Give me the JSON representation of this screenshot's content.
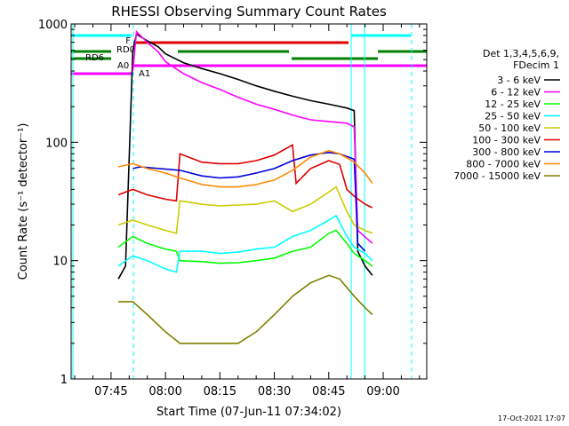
{
  "chart_data": {
    "type": "line",
    "title": "RHESSI Observing Summary Count Rates",
    "xlabel": "Start Time (07-Jun-11 07:34:02)",
    "ylabel": "Count Rate (s⁻¹ detector⁻¹)",
    "yscale": "log",
    "ylim": [
      1,
      1000
    ],
    "y_tick_labels": [
      "1",
      "10",
      "100",
      "1000"
    ],
    "xlim_minutes": [
      "07:34",
      "09:12"
    ],
    "x_tick_labels": [
      "07:45",
      "08:00",
      "08:15",
      "08:30",
      "08:45",
      "09:00"
    ],
    "legend_header": [
      "Det 1,3,4,5,6,9,",
      "FDecim 1"
    ],
    "legend_placement": "right",
    "timestamp": "17-Oct-2021 17:07",
    "state_labels": [
      "F",
      "RD0",
      "RD6",
      "A0",
      "A1"
    ],
    "series": [
      {
        "name": "3 - 6 keV",
        "color": "#000000",
        "points": [
          [
            "07:47",
            7
          ],
          [
            "07:49",
            9
          ],
          [
            "07:51",
            600
          ],
          [
            "07:52",
            820
          ],
          [
            "07:55",
            720
          ],
          [
            "07:58",
            640
          ],
          [
            "08:00",
            560
          ],
          [
            "08:05",
            470
          ],
          [
            "08:10",
            420
          ],
          [
            "08:15",
            380
          ],
          [
            "08:20",
            340
          ],
          [
            "08:25",
            300
          ],
          [
            "08:30",
            270
          ],
          [
            "08:35",
            245
          ],
          [
            "08:40",
            225
          ],
          [
            "08:45",
            210
          ],
          [
            "08:50",
            195
          ],
          [
            "08:52",
            185
          ],
          [
            "08:53",
            12
          ],
          [
            "08:55",
            9
          ],
          [
            "08:57",
            7.5
          ]
        ]
      },
      {
        "name": "6 - 12 keV",
        "color": "#ff00ff",
        "points": [
          [
            "07:51",
            400
          ],
          [
            "07:52",
            860
          ],
          [
            "07:55",
            700
          ],
          [
            "07:58",
            580
          ],
          [
            "08:00",
            480
          ],
          [
            "08:05",
            380
          ],
          [
            "08:10",
            320
          ],
          [
            "08:15",
            280
          ],
          [
            "08:20",
            240
          ],
          [
            "08:25",
            210
          ],
          [
            "08:30",
            190
          ],
          [
            "08:35",
            170
          ],
          [
            "08:40",
            155
          ],
          [
            "08:45",
            150
          ],
          [
            "08:50",
            145
          ],
          [
            "08:52",
            135
          ],
          [
            "08:53",
            18
          ],
          [
            "08:57",
            14
          ]
        ]
      },
      {
        "name": "12 - 25 keV",
        "color": "#00ff00",
        "points": [
          [
            "07:47",
            13
          ],
          [
            "07:51",
            16
          ],
          [
            "07:55",
            14
          ],
          [
            "08:00",
            12.5
          ],
          [
            "08:03",
            12
          ],
          [
            "08:04",
            10
          ],
          [
            "08:10",
            9.8
          ],
          [
            "08:15",
            9.5
          ],
          [
            "08:20",
            9.6
          ],
          [
            "08:25",
            10
          ],
          [
            "08:30",
            10.5
          ],
          [
            "08:35",
            12
          ],
          [
            "08:40",
            13
          ],
          [
            "08:45",
            17
          ],
          [
            "08:47",
            18
          ],
          [
            "08:50",
            14
          ],
          [
            "08:52",
            11.5
          ],
          [
            "08:55",
            10
          ],
          [
            "08:57",
            9
          ]
        ]
      },
      {
        "name": "25 - 50 keV",
        "color": "#00ffff",
        "points": [
          [
            "07:47",
            9
          ],
          [
            "07:51",
            11
          ],
          [
            "07:55",
            10
          ],
          [
            "08:00",
            8.5
          ],
          [
            "08:03",
            8
          ],
          [
            "08:04",
            12
          ],
          [
            "08:10",
            12
          ],
          [
            "08:15",
            11.5
          ],
          [
            "08:20",
            11.8
          ],
          [
            "08:25",
            12.5
          ],
          [
            "08:30",
            13
          ],
          [
            "08:35",
            16
          ],
          [
            "08:40",
            18
          ],
          [
            "08:45",
            22
          ],
          [
            "08:47",
            24
          ],
          [
            "08:50",
            16
          ],
          [
            "08:52",
            13
          ],
          [
            "08:55",
            11.5
          ],
          [
            "08:57",
            10
          ]
        ]
      },
      {
        "name": "50 - 100 keV",
        "color": "#cccc00",
        "points": [
          [
            "07:47",
            20
          ],
          [
            "07:51",
            22
          ],
          [
            "07:55",
            20
          ],
          [
            "08:00",
            18
          ],
          [
            "08:03",
            17
          ],
          [
            "08:04",
            32
          ],
          [
            "08:10",
            30
          ],
          [
            "08:15",
            29
          ],
          [
            "08:20",
            29.5
          ],
          [
            "08:25",
            30
          ],
          [
            "08:30",
            32
          ],
          [
            "08:35",
            26
          ],
          [
            "08:40",
            30
          ],
          [
            "08:45",
            38
          ],
          [
            "08:47",
            42
          ],
          [
            "08:50",
            26
          ],
          [
            "08:52",
            20
          ],
          [
            "08:55",
            18
          ],
          [
            "08:57",
            17
          ]
        ]
      },
      {
        "name": "100 - 300 keV",
        "color": "#dd0000",
        "points": [
          [
            "07:47",
            36
          ],
          [
            "07:51",
            40
          ],
          [
            "07:55",
            36
          ],
          [
            "08:00",
            33
          ],
          [
            "08:03",
            32
          ],
          [
            "08:04",
            80
          ],
          [
            "08:10",
            68
          ],
          [
            "08:15",
            66
          ],
          [
            "08:20",
            66
          ],
          [
            "08:25",
            70
          ],
          [
            "08:30",
            78
          ],
          [
            "08:35",
            95
          ],
          [
            "08:36",
            45
          ],
          [
            "08:40",
            60
          ],
          [
            "08:45",
            70
          ],
          [
            "08:48",
            65
          ],
          [
            "08:50",
            40
          ],
          [
            "08:52",
            35
          ],
          [
            "08:55",
            30
          ],
          [
            "08:57",
            28
          ]
        ]
      },
      {
        "name": "300 - 800 keV",
        "color": "#0000dd",
        "points": [
          [
            "07:51",
            60
          ],
          [
            "07:53",
            62
          ],
          [
            "08:04",
            58
          ],
          [
            "08:10",
            52
          ],
          [
            "08:15",
            50
          ],
          [
            "08:20",
            51
          ],
          [
            "08:25",
            55
          ],
          [
            "08:30",
            60
          ],
          [
            "08:35",
            70
          ],
          [
            "08:40",
            78
          ],
          [
            "08:45",
            82
          ],
          [
            "08:48",
            80
          ],
          [
            "08:52",
            72
          ],
          [
            "08:53",
            14
          ],
          [
            "08:55",
            12
          ]
        ]
      },
      {
        "name": "800 - 7000 keV",
        "color": "#ff8800",
        "points": [
          [
            "07:47",
            62
          ],
          [
            "07:51",
            66
          ],
          [
            "07:55",
            60
          ],
          [
            "08:00",
            55
          ],
          [
            "08:04",
            50
          ],
          [
            "08:10",
            44
          ],
          [
            "08:15",
            42
          ],
          [
            "08:20",
            42
          ],
          [
            "08:25",
            44
          ],
          [
            "08:30",
            48
          ],
          [
            "08:35",
            58
          ],
          [
            "08:40",
            75
          ],
          [
            "08:45",
            85
          ],
          [
            "08:48",
            80
          ],
          [
            "08:52",
            68
          ],
          [
            "08:55",
            55
          ],
          [
            "08:57",
            45
          ]
        ]
      },
      {
        "name": "7000 - 15000 keV",
        "color": "#808000",
        "points": [
          [
            "07:47",
            4.5
          ],
          [
            "07:51",
            4.5
          ],
          [
            "07:55",
            3.5
          ],
          [
            "08:00",
            2.5
          ],
          [
            "08:04",
            2
          ],
          [
            "08:10",
            2
          ],
          [
            "08:15",
            2
          ],
          [
            "08:20",
            2
          ],
          [
            "08:25",
            2.5
          ],
          [
            "08:30",
            3.5
          ],
          [
            "08:35",
            5
          ],
          [
            "08:40",
            6.5
          ],
          [
            "08:45",
            7.5
          ],
          [
            "08:48",
            7
          ],
          [
            "08:52",
            5
          ],
          [
            "08:55",
            4
          ],
          [
            "08:57",
            3.5
          ]
        ]
      }
    ]
  }
}
